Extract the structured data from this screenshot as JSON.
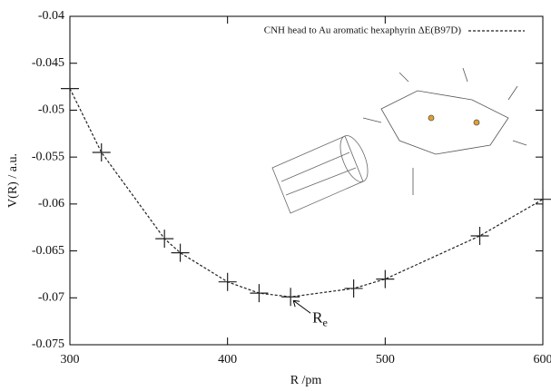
{
  "chart_data": {
    "type": "line",
    "xlabel": "R /pm",
    "ylabel": "V(R) / a.u.",
    "x": [
      300,
      320,
      360,
      370,
      400,
      420,
      440,
      480,
      500,
      560,
      600
    ],
    "series": [
      {
        "name": "CNH head to Au aromatic hexaphyrin ΔE(B97D)",
        "color": "#222222",
        "values": [
          -0.0477,
          -0.0545,
          -0.0637,
          -0.0652,
          -0.0683,
          -0.0695,
          -0.0699,
          -0.069,
          -0.068,
          -0.0634,
          -0.0595
        ]
      }
    ],
    "xlim": [
      300,
      600
    ],
    "xticks": [
      300,
      400,
      500,
      600
    ],
    "ylim": [
      -0.075,
      -0.04
    ],
    "yticks": [
      -0.075,
      -0.07,
      -0.065,
      -0.06,
      -0.055,
      -0.05,
      -0.045,
      -0.04
    ],
    "legend": "top-right",
    "annotation": {
      "text": "R",
      "subscript": "e",
      "x": 440,
      "y": -0.0699
    }
  }
}
